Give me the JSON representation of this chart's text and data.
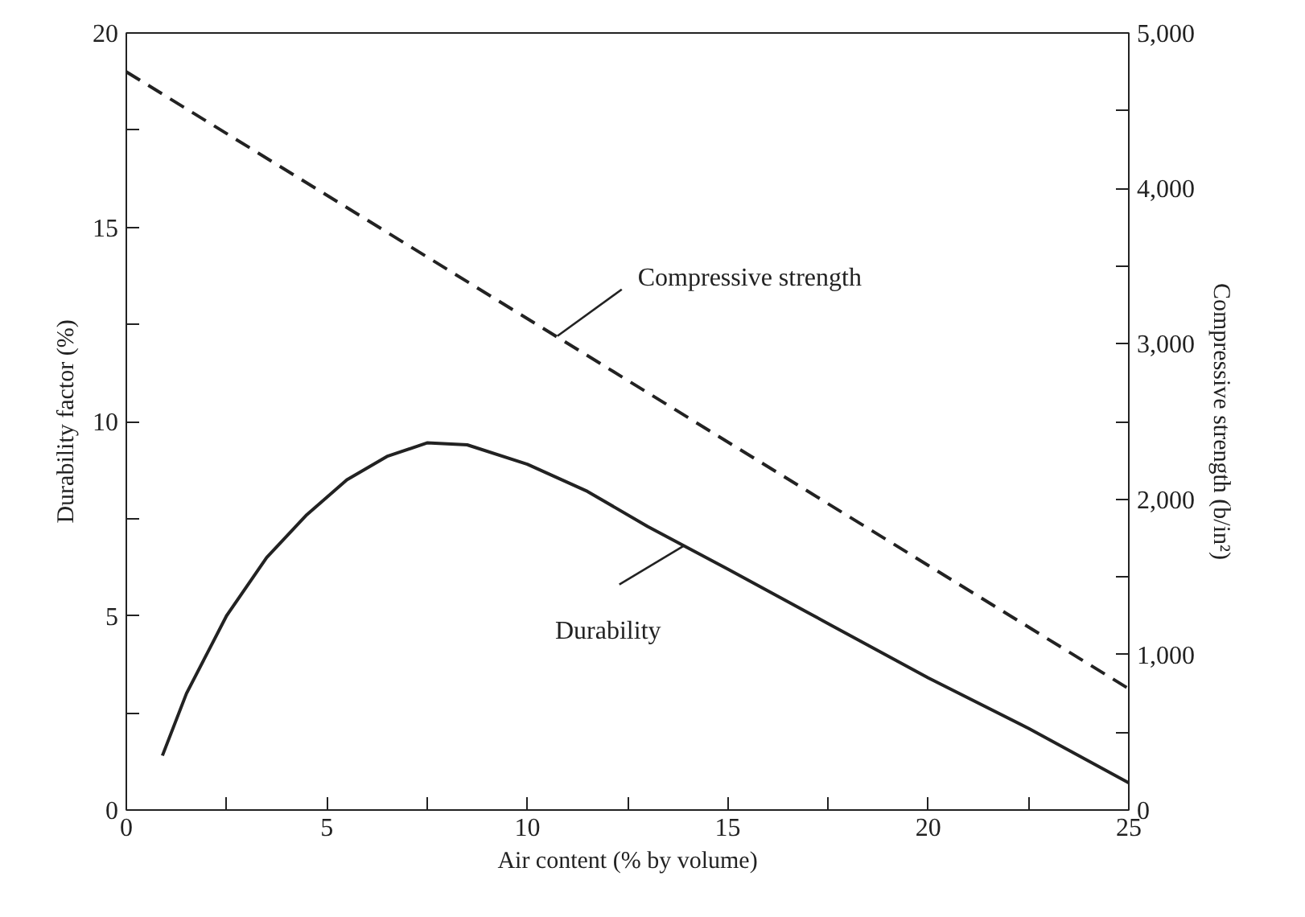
{
  "chart_data": {
    "type": "line",
    "xlabel": "Air content (% by volume)",
    "ylabel": "Durability factor (%)",
    "y2label": "Compressive strength (b/in²)",
    "xlim": [
      0,
      25
    ],
    "xticks": [
      0,
      5,
      10,
      15,
      20,
      25
    ],
    "ylim": [
      0,
      20
    ],
    "yticks": [
      0,
      5,
      10,
      15,
      20
    ],
    "y2lim": [
      0,
      5000
    ],
    "y2ticks": [
      {
        "value": 0,
        "label": "0"
      },
      {
        "value": 1000,
        "label": "1,000"
      },
      {
        "value": 2000,
        "label": "2,000"
      },
      {
        "value": 3000,
        "label": "3,000"
      },
      {
        "value": 4000,
        "label": "4,000"
      },
      {
        "value": 5000,
        "label": "5,000"
      }
    ],
    "grid": false,
    "series": [
      {
        "color": "#222222",
        "line_style": "solid",
        "x": [
          0.9,
          1.5,
          2.5,
          3.5,
          4.5,
          5.5,
          6.5,
          7.5,
          8.5,
          10,
          11.5,
          13,
          15,
          17.5,
          20,
          22.5,
          25
        ],
        "values": [
          1.4,
          3.0,
          5.0,
          6.5,
          7.6,
          8.5,
          9.1,
          9.45,
          9.4,
          8.9,
          8.2,
          7.3,
          6.2,
          4.8,
          3.4,
          2.1,
          0.7
        ]
      },
      {
        "color": "#222222",
        "line_style": "dashed",
        "axis": "y2",
        "x": [
          0,
          25
        ],
        "values": [
          4750,
          780
        ]
      }
    ],
    "annotations": [
      {
        "text": "Compressive strength",
        "x": 10.75,
        "y": 12.2
      },
      {
        "text": "Durability",
        "x": 13.9,
        "y": 6.8
      }
    ]
  }
}
